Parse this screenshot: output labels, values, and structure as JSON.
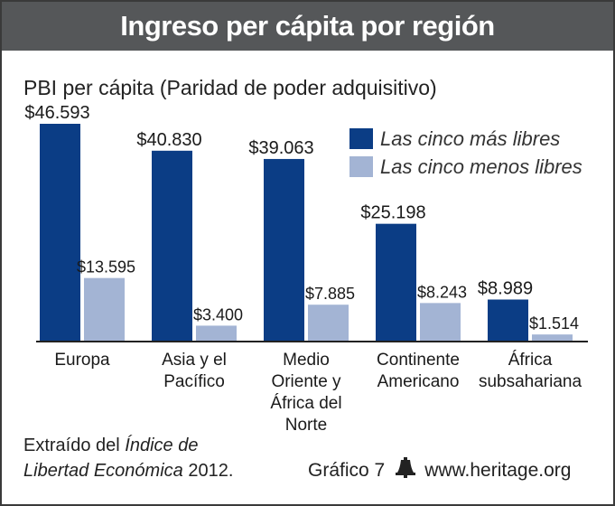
{
  "header": {
    "title": "Ingreso per cápita por región"
  },
  "colors": {
    "free": "#0b3d85",
    "unfree": "#a3b4d4",
    "title_bg": "#555759",
    "axis": "#222222"
  },
  "chart_data": {
    "type": "bar",
    "title": "Ingreso per cápita por región",
    "subtitle": "PBI per cápita (Paridad de poder adquisitivo)",
    "categories": [
      [
        "Europa"
      ],
      [
        "Asia y el",
        "Pacífico"
      ],
      [
        "Medio",
        "Oriente y",
        "África del",
        "Norte"
      ],
      [
        "Continente",
        "Americano"
      ],
      [
        "África",
        "subsahariana"
      ]
    ],
    "series": [
      {
        "name": "Las cinco más libres",
        "values": [
          46593,
          40830,
          39063,
          25198,
          8989
        ],
        "labels": [
          "$46.593",
          "$40.830",
          "$39.063",
          "$25.198",
          "$8.989"
        ]
      },
      {
        "name": "Las cinco menos libres",
        "values": [
          13595,
          3400,
          7885,
          8243,
          1514
        ],
        "labels": [
          "$13.595",
          "$3.400",
          "$7.885",
          "$8.243",
          "$1.514"
        ]
      }
    ],
    "ylim": [
      0,
      46593
    ],
    "grid": false,
    "legend_position": "top-right"
  },
  "footer": {
    "source_prefix": "Extraído del ",
    "source_italic_1": "Índice de",
    "source_italic_2": "Libertad Económica",
    "source_suffix": " 2012.",
    "chart_number": "Gráfico 7",
    "website": "www.heritage.org"
  }
}
